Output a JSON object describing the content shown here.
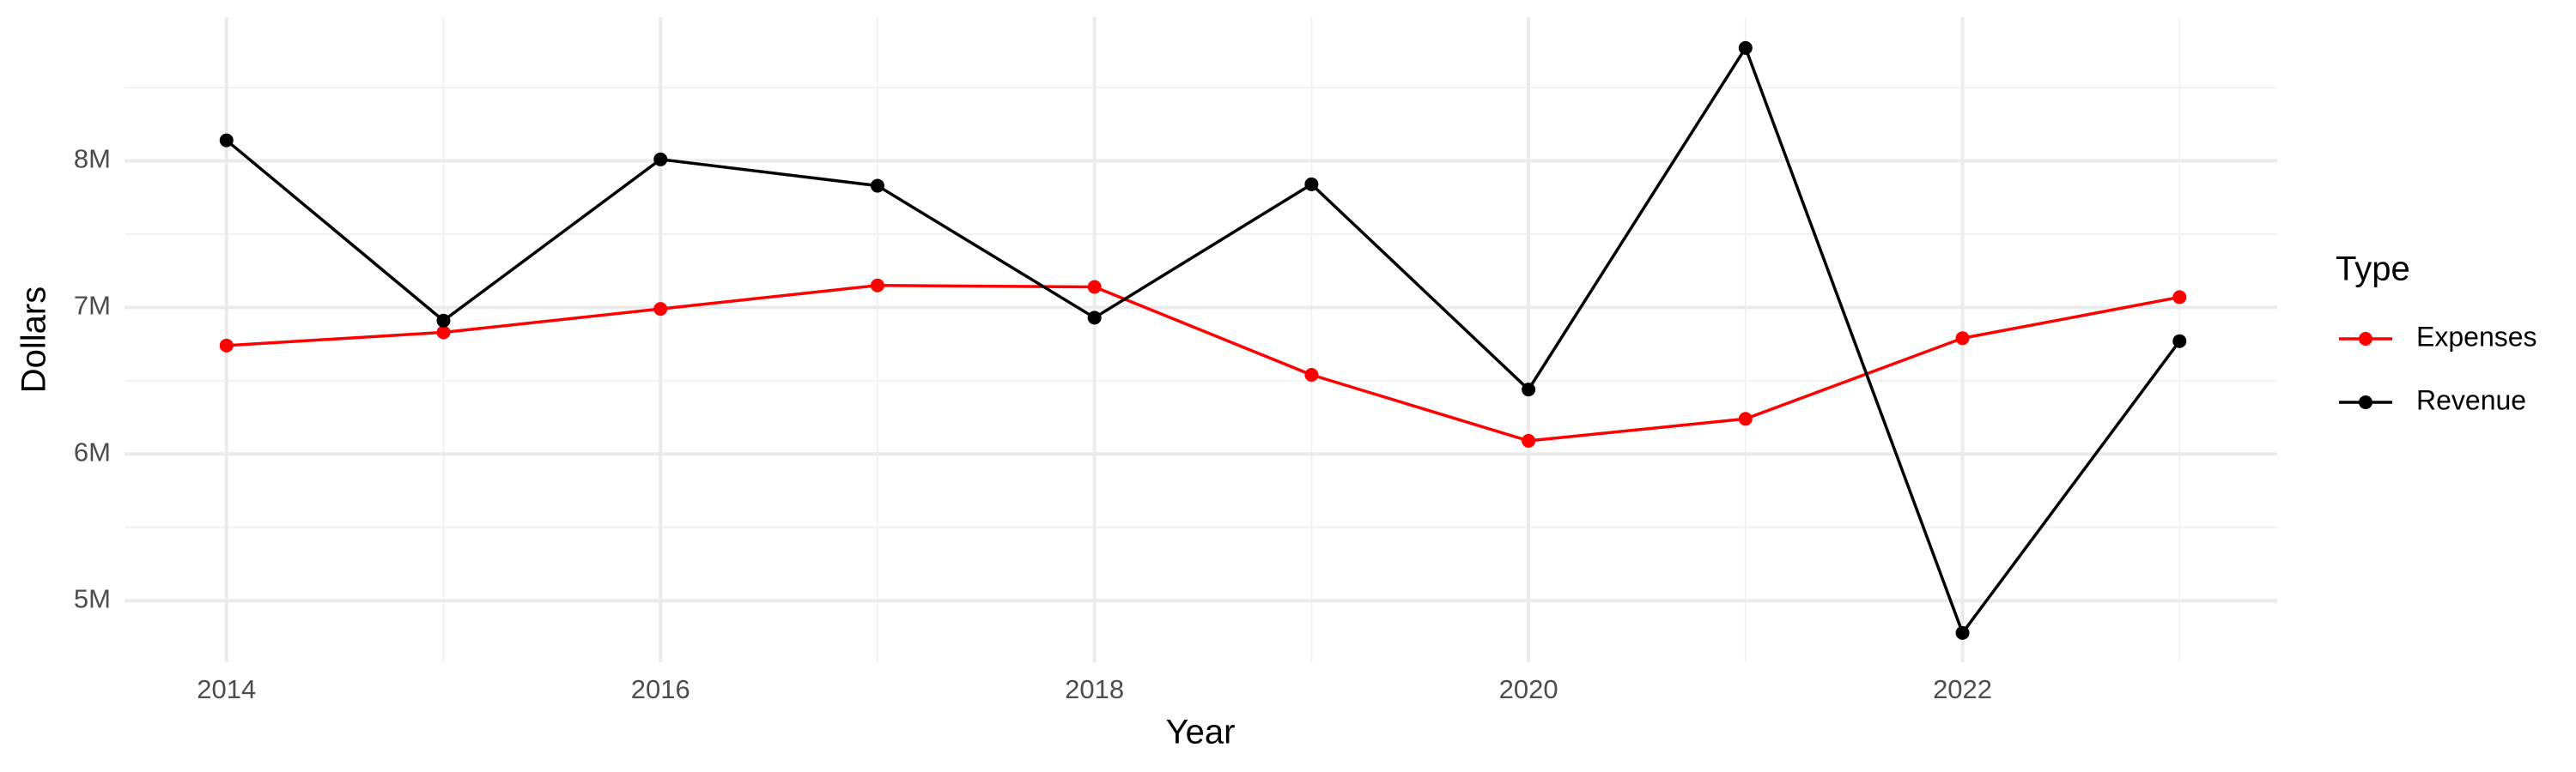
{
  "chart_data": {
    "type": "line",
    "x_label": "Year",
    "y_label": "Dollars",
    "legend_title": "Type",
    "x": [
      2014,
      2015,
      2016,
      2017,
      2018,
      2019,
      2020,
      2021,
      2022,
      2023
    ],
    "series": [
      {
        "name": "Expenses",
        "color": "#ff0000",
        "values": [
          6740000,
          6830000,
          6990000,
          7150000,
          7140000,
          6540000,
          6090000,
          6240000,
          6790000,
          7070000
        ]
      },
      {
        "name": "Revenue",
        "color": "#000000",
        "values": [
          8140000,
          6910000,
          8010000,
          7830000,
          6930000,
          7840000,
          6440000,
          8770000,
          4780000,
          6770000
        ]
      }
    ],
    "xlim": [
      2013.53,
      2023.45
    ],
    "xticks": [
      2014,
      2016,
      2018,
      2020,
      2022
    ],
    "xminor": [
      2015,
      2017,
      2019,
      2021,
      2023
    ],
    "ylim": [
      4580000,
      8980000
    ],
    "yticks": [
      {
        "value": 5000000,
        "label": "5M"
      },
      {
        "value": 6000000,
        "label": "6M"
      },
      {
        "value": 7000000,
        "label": "7M"
      },
      {
        "value": 8000000,
        "label": "8M"
      }
    ],
    "yminor": [
      5500000,
      6500000,
      7500000,
      8500000
    ],
    "grid": true,
    "legend": "right"
  }
}
